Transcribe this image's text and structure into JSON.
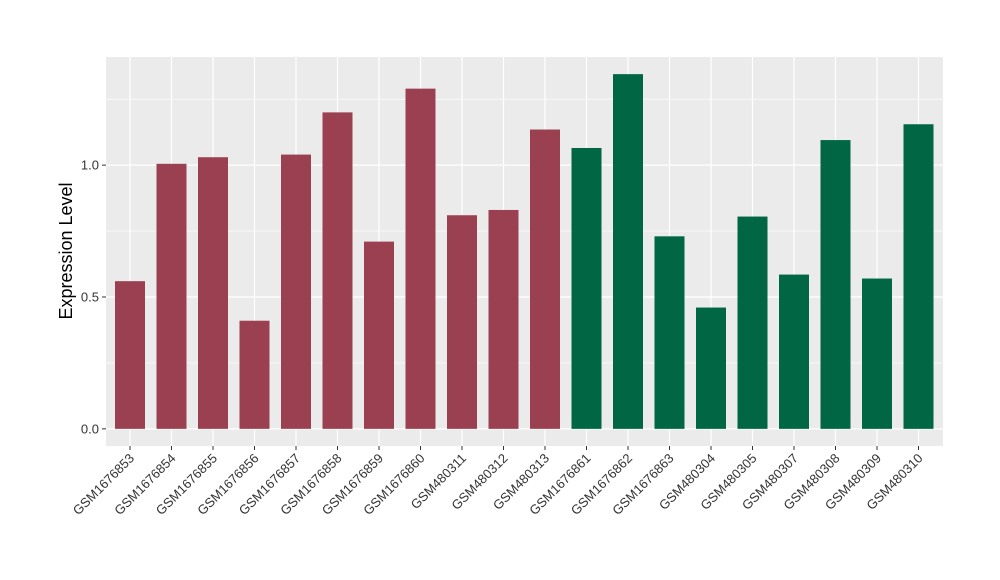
{
  "chart_data": {
    "type": "bar",
    "title": "",
    "xlabel": "",
    "ylabel": "Expression Level",
    "ylim": [
      -0.065,
      1.41
    ],
    "yticks": [
      0.0,
      0.5,
      1.0
    ],
    "ytick_labels": [
      "0.0",
      "0.5",
      "1.0"
    ],
    "grid": true,
    "legend": "none",
    "colors": {
      "panel_background": "#ebebeb",
      "grid": "#ffffff",
      "group1": "#9a4050",
      "group2": "#006644"
    },
    "categories": [
      "GSM1676853",
      "GSM1676854",
      "GSM1676855",
      "GSM1676856",
      "GSM1676857",
      "GSM1676858",
      "GSM1676859",
      "GSM1676860",
      "GSM480311",
      "GSM480312",
      "GSM480313",
      "GSM1676861",
      "GSM1676862",
      "GSM1676863",
      "GSM480304",
      "GSM480305",
      "GSM480307",
      "GSM480308",
      "GSM480309",
      "GSM480310"
    ],
    "values": [
      0.56,
      1.005,
      1.03,
      0.41,
      1.04,
      1.2,
      0.71,
      1.29,
      0.81,
      0.83,
      1.135,
      1.065,
      1.345,
      0.73,
      0.46,
      0.805,
      0.585,
      1.095,
      0.57,
      1.155
    ],
    "groups": [
      "group1",
      "group1",
      "group1",
      "group1",
      "group1",
      "group1",
      "group1",
      "group1",
      "group1",
      "group1",
      "group1",
      "group2",
      "group2",
      "group2",
      "group2",
      "group2",
      "group2",
      "group2",
      "group2",
      "group2"
    ]
  }
}
